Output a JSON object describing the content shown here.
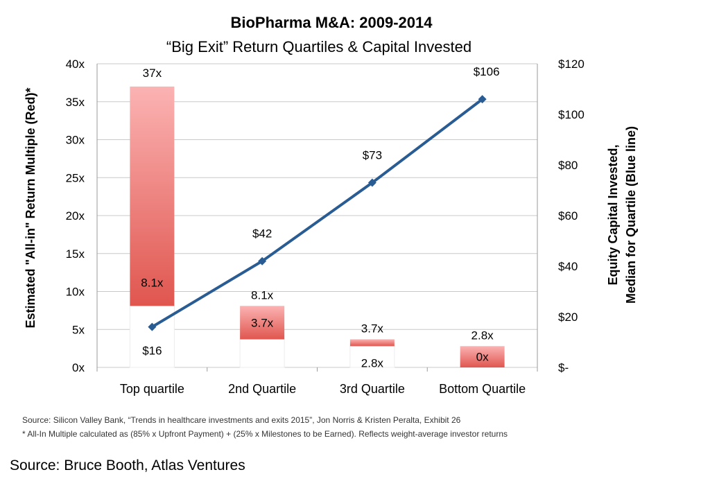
{
  "chart_data": {
    "type": "bar",
    "title": "BioPharma M&A: 2009-2014",
    "subtitle": "“Big Exit” Return Quartiles & Capital Invested",
    "categories": [
      "Top quartile",
      "2nd Quartile",
      "3rd Quartile",
      "Bottom Quartile"
    ],
    "ylabel": "Estimated \"All-in\" Return Multiple (Red)*",
    "y2label_line1": "Equity Capital Invested,",
    "y2label_line2": "Median for Quartile (Blue line)",
    "ylim": [
      0,
      40
    ],
    "y2lim": [
      0,
      120
    ],
    "yticks": [
      {
        "value": 0,
        "label": "0x"
      },
      {
        "value": 5,
        "label": "5x"
      },
      {
        "value": 10,
        "label": "10x"
      },
      {
        "value": 15,
        "label": "15x"
      },
      {
        "value": 20,
        "label": "20x"
      },
      {
        "value": 25,
        "label": "25x"
      },
      {
        "value": 30,
        "label": "30x"
      },
      {
        "value": 35,
        "label": "35x"
      },
      {
        "value": 40,
        "label": "40x"
      }
    ],
    "y2ticks": [
      {
        "value": 0,
        "label": "$-"
      },
      {
        "value": 20,
        "label": "$20"
      },
      {
        "value": 40,
        "label": "$40"
      },
      {
        "value": 60,
        "label": "$60"
      },
      {
        "value": 80,
        "label": "$80"
      },
      {
        "value": 100,
        "label": "$100"
      },
      {
        "value": 120,
        "label": "$120"
      }
    ],
    "grid": true,
    "range_bars": [
      {
        "category": "Top quartile",
        "low": 8.1,
        "high": 37,
        "low_label": "8.1x",
        "high_label": "37x"
      },
      {
        "category": "2nd Quartile",
        "low": 3.7,
        "high": 8.1,
        "low_label": "3.7x",
        "high_label": "8.1x"
      },
      {
        "category": "3rd Quartile",
        "low": 2.8,
        "high": 3.7,
        "low_label": "2.8x",
        "high_label": "3.7x"
      },
      {
        "category": "Bottom Quartile",
        "low": 0,
        "high": 2.8,
        "low_label": "0x",
        "high_label": "2.8x"
      }
    ],
    "line_series": {
      "axis": "right",
      "values": [
        16,
        42,
        73,
        106
      ],
      "labels": [
        "$16",
        "$42",
        "$73",
        "$106"
      ],
      "color": "#2a5c94"
    },
    "colors": {
      "bar_top": "#fbb3b3",
      "bar_bottom": "#e0564f",
      "line": "#2a5c94",
      "grid": "#c8c8c8"
    }
  },
  "footnotes": [
    "Source: Silicon Valley Bank, “Trends in healthcare investments and exits 2015”, Jon Norris & Kristen Peralta, Exhibit 26",
    "* All-In Multiple calculated as (85% x Upfront Payment) + (25% x Milestones to be Earned). Reflects weight-average investor returns"
  ],
  "credit": "Source: Bruce Booth, Atlas Ventures"
}
